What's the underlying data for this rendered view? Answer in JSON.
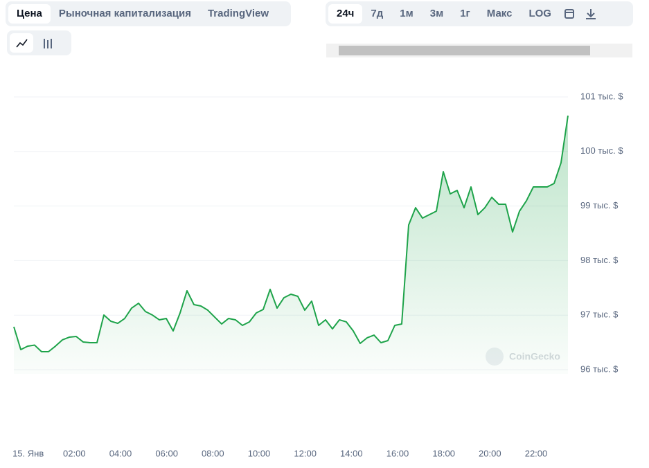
{
  "toolbar": {
    "tabs": [
      "Цена",
      "Рыночная капитализация",
      "TradingView"
    ],
    "ranges": [
      "24ч",
      "7д",
      "1м",
      "3м",
      "1г",
      "Макс",
      "LOG"
    ]
  },
  "chart_data": {
    "type": "line",
    "watermark": "CoinGecko",
    "color": "#1ea34a",
    "grid": true,
    "x": [
      -0.5,
      -0.2,
      0.1,
      0.4,
      0.7,
      1,
      1.3,
      1.6,
      1.9,
      2.2,
      2.5,
      2.8,
      3.1,
      3.4,
      3.7,
      4,
      4.3,
      4.6,
      4.9,
      5.2,
      5.5,
      5.8,
      6.1,
      6.4,
      6.7,
      7,
      7.3,
      7.6,
      7.9,
      8.2,
      8.5,
      8.8,
      9.1,
      9.4,
      9.7,
      10,
      10.3,
      10.6,
      10.9,
      11.2,
      11.5,
      11.8,
      12.1,
      12.4,
      12.7,
      13,
      13.3,
      13.6,
      13.9,
      14.2,
      14.5,
      14.8,
      15.1,
      15.4,
      15.7,
      16,
      16.3,
      16.6,
      16.9,
      17.2,
      17.5,
      17.8,
      18.1,
      18.4,
      18.7,
      19,
      19.3,
      19.6,
      19.9,
      20.2,
      20.5,
      20.8,
      21.1,
      21.4,
      21.7,
      22,
      22.3,
      22.6,
      22.9,
      23.2,
      23.5
    ],
    "values": [
      96787,
      96368,
      96431,
      96450,
      96330,
      96330,
      96431,
      96546,
      96596,
      96609,
      96508,
      96495,
      96495,
      97002,
      96888,
      96850,
      96939,
      97129,
      97218,
      97066,
      97002,
      96914,
      96939,
      96711,
      97041,
      97447,
      97193,
      97167,
      97091,
      96964,
      96838,
      96939,
      96914,
      96812,
      96876,
      97041,
      97104,
      97472,
      97129,
      97320,
      97383,
      97345,
      97091,
      97256,
      96812,
      96914,
      96749,
      96914,
      96876,
      96711,
      96482,
      96584,
      96634,
      96495,
      96533,
      96812,
      96838,
      98652,
      98969,
      98779,
      98843,
      98906,
      99629,
      99223,
      99287,
      98969,
      99350,
      98843,
      98969,
      99160,
      99033,
      99033,
      98525,
      98906,
      99096,
      99350,
      99350,
      99350,
      99414,
      99794,
      100657
    ],
    "xlim": [
      -0.5,
      23.5
    ],
    "xticks": [
      {
        "value": 0,
        "label": "15. Янв"
      },
      {
        "value": 2,
        "label": "02:00"
      },
      {
        "value": 4,
        "label": "04:00"
      },
      {
        "value": 6,
        "label": "06:00"
      },
      {
        "value": 8,
        "label": "08:00"
      },
      {
        "value": 10,
        "label": "10:00"
      },
      {
        "value": 12,
        "label": "12:00"
      },
      {
        "value": 14,
        "label": "14:00"
      },
      {
        "value": 16,
        "label": "16:00"
      },
      {
        "value": 18,
        "label": "18:00"
      },
      {
        "value": 20,
        "label": "20:00"
      },
      {
        "value": 22,
        "label": "22:00"
      }
    ],
    "ylim": [
      96000,
      101000
    ],
    "yticks": [
      {
        "value": 96000,
        "label": "96 тыс. $"
      },
      {
        "value": 97000,
        "label": "97 тыс. $"
      },
      {
        "value": 98000,
        "label": "98 тыс. $"
      },
      {
        "value": 99000,
        "label": "99 тыс. $"
      },
      {
        "value": 100000,
        "label": "100 тыс. $"
      },
      {
        "value": 101000,
        "label": "101 тыс. $"
      }
    ]
  }
}
